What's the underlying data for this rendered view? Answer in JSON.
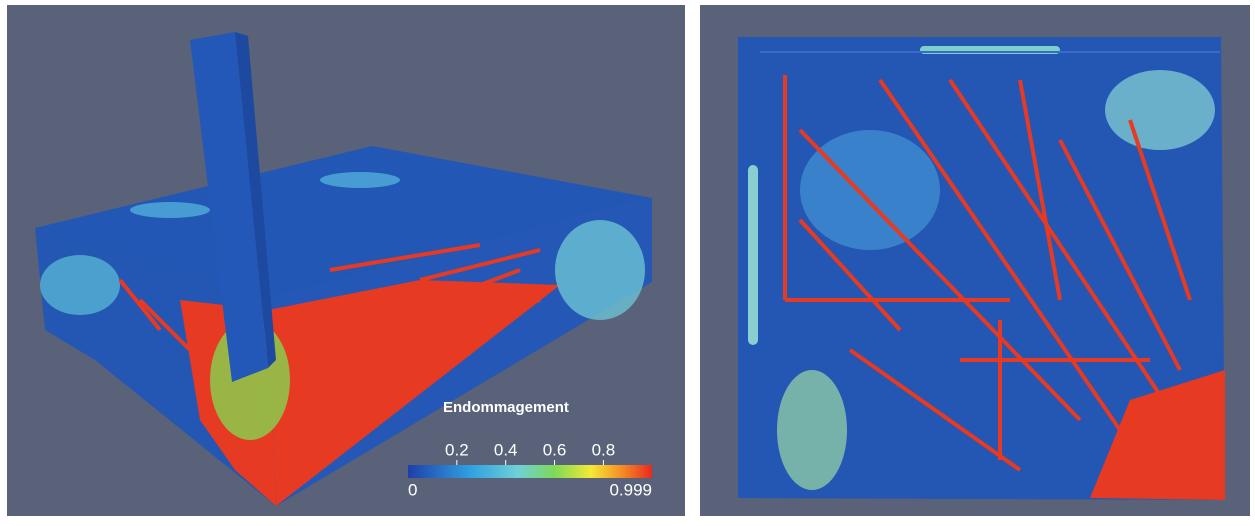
{
  "colorbar": {
    "title": "Endommagement",
    "min": 0,
    "max": 0.999,
    "ticks": [
      0.2,
      0.4,
      0.6,
      0.8
    ]
  }
}
